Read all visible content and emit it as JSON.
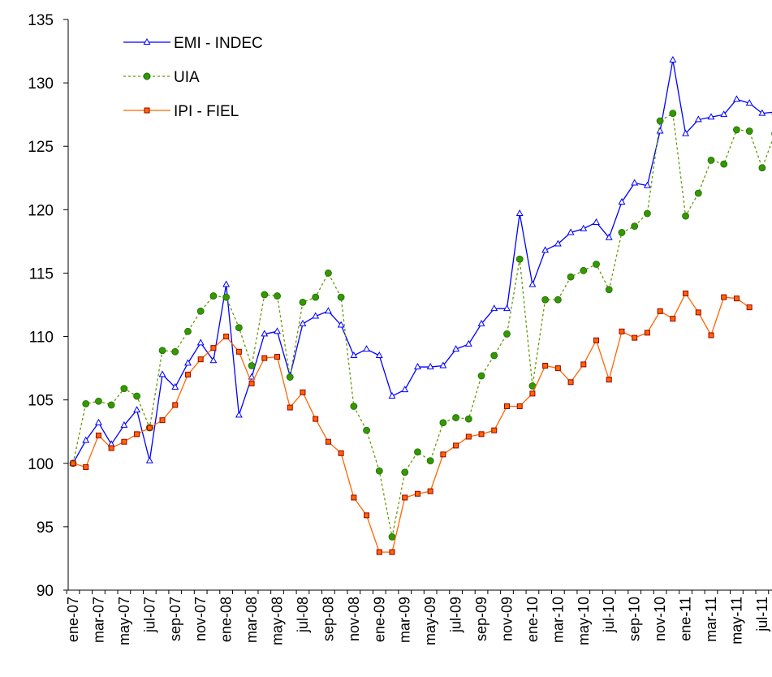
{
  "chart_data": {
    "type": "line",
    "categories": [
      "ene-07",
      null,
      "mar-07",
      null,
      "may-07",
      null,
      "jul-07",
      null,
      "sep-07",
      null,
      "nov-07",
      null,
      "ene-08",
      null,
      "mar-08",
      null,
      "may-08",
      null,
      "jul-08",
      null,
      "sep-08",
      null,
      "nov-08",
      null,
      "ene-09",
      null,
      "mar-09",
      null,
      "may-09",
      null,
      "jul-09",
      null,
      "sep-09",
      null,
      "nov-09",
      null,
      "ene-10",
      null,
      "mar-10",
      null,
      "may-10",
      null,
      "jul-10",
      null,
      "sep-10",
      null,
      "nov-10",
      null,
      "ene-11",
      null,
      "mar-11",
      null,
      "may-11",
      null,
      "jul-11",
      null
    ],
    "series": [
      {
        "name": "EMI - INDEC",
        "color": "#0000ff",
        "marker": "triangle",
        "dash": "solid",
        "values": [
          100.0,
          101.8,
          103.2,
          101.5,
          103.0,
          104.2,
          100.2,
          107.0,
          106.0,
          107.9,
          109.5,
          108.1,
          114.1,
          103.8,
          106.8,
          110.2,
          110.4,
          106.9,
          111.0,
          111.6,
          112.0,
          110.9,
          108.5,
          109.0,
          108.5,
          105.3,
          105.8,
          107.6,
          107.6,
          107.7,
          109.0,
          109.4,
          111.0,
          112.2,
          112.2,
          119.7,
          114.1,
          116.8,
          117.3,
          118.2,
          118.5,
          119.0,
          117.8,
          120.6,
          122.1,
          121.9,
          126.2,
          131.8,
          126.0,
          127.1,
          127.3,
          127.5,
          128.7,
          128.4,
          127.6,
          127.7
        ]
      },
      {
        "name": "UIA",
        "color": "#669900",
        "marker": "circle",
        "dash": "dotted",
        "values": [
          100.0,
          104.7,
          104.9,
          104.6,
          105.9,
          105.3,
          102.8,
          108.9,
          108.8,
          110.4,
          112.0,
          113.2,
          113.1,
          110.7,
          107.7,
          113.3,
          113.2,
          106.8,
          112.7,
          113.1,
          115.0,
          113.1,
          104.5,
          102.6,
          99.4,
          94.2,
          99.3,
          100.9,
          100.2,
          103.2,
          103.6,
          103.5,
          106.9,
          108.5,
          110.2,
          116.1,
          106.1,
          112.9,
          112.9,
          114.7,
          115.2,
          115.7,
          113.7,
          118.2,
          118.7,
          119.7,
          127.0,
          127.6,
          119.5,
          121.3,
          123.9,
          123.6,
          126.3,
          126.2,
          123.3,
          126.0
        ]
      },
      {
        "name": "IPI - FIEL",
        "color": "#ff6600",
        "marker": "square",
        "dash": "solid",
        "values": [
          100.0,
          99.7,
          102.2,
          101.2,
          101.7,
          102.3,
          102.8,
          103.4,
          104.6,
          107.0,
          108.2,
          109.1,
          110.0,
          108.8,
          106.3,
          108.3,
          108.4,
          104.4,
          105.6,
          103.5,
          101.7,
          100.8,
          97.3,
          95.9,
          93.0,
          93.0,
          97.3,
          97.6,
          97.8,
          100.7,
          101.4,
          102.1,
          102.3,
          102.6,
          104.5,
          104.5,
          105.5,
          107.7,
          107.5,
          106.4,
          107.8,
          109.7,
          106.6,
          110.4,
          109.9,
          110.3,
          112.0,
          111.4,
          113.4,
          111.9,
          110.1,
          113.1,
          113.0,
          112.3,
          null,
          null
        ]
      }
    ],
    "ylim": [
      90,
      135
    ],
    "yticks": [
      90,
      95,
      100,
      105,
      110,
      115,
      120,
      125,
      130,
      135
    ],
    "grid": false,
    "legend": "top-left"
  }
}
